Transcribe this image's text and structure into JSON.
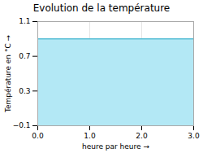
{
  "chart_data": {
    "type": "area",
    "title": "Evolution de la température",
    "xlabel": "heure par heure",
    "ylabel": "Température en °C",
    "x": [
      0,
      3
    ],
    "series": [
      {
        "type": "area",
        "color": "#b3e8f5",
        "values": [
          0.9,
          0.9
        ]
      },
      {
        "type": "line",
        "color": "#5bbfd6",
        "values": [
          0.9,
          0.9
        ]
      }
    ],
    "xlim": [
      0,
      3
    ],
    "xticks": [
      0,
      1,
      2,
      3
    ],
    "ylim": [
      -0.1,
      1.1
    ],
    "yticks": [
      -0.1,
      0.3,
      0.7,
      1.1
    ],
    "grid": true
  }
}
